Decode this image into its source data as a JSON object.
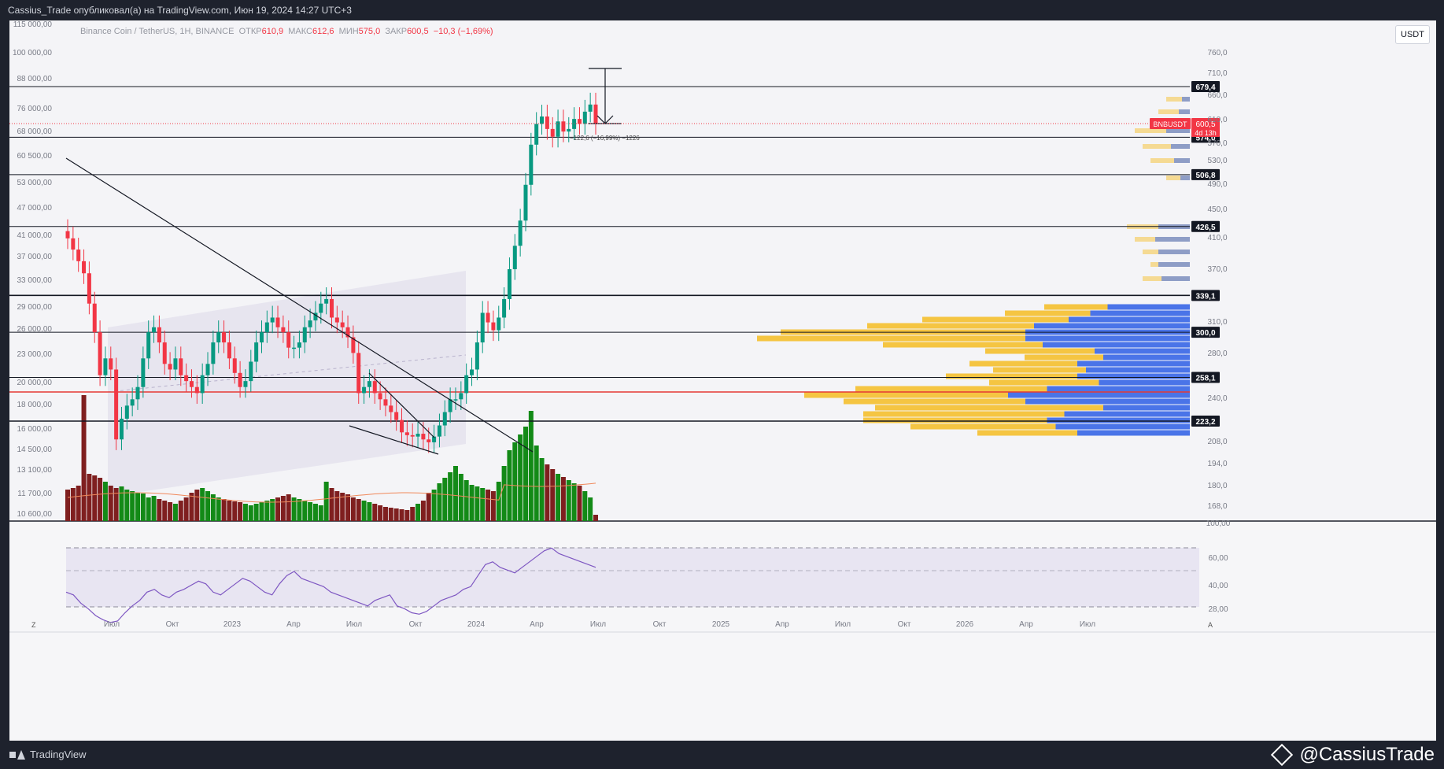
{
  "header": {
    "publish_line": "Cassius_Trade опубликовал(а) на TradingView.com, Июн 19, 2024 14:27 UTC+3"
  },
  "legend": {
    "symbol": "Binance Coin / TetherUS, 1H, BINANCE",
    "open_label": "ОТКР",
    "open_value": "610,9",
    "high_label": "МАКС",
    "high_value": "612,6",
    "low_label": "МИН",
    "low_value": "575,0",
    "close_label": "ЗАКР",
    "close_value": "600,5",
    "change": "−10,3 (−1,69%)"
  },
  "currency_button": "USDT",
  "left_axis": [
    "115 000,00",
    "100 000,00",
    "88 000,00",
    "76 000,00",
    "68 000,00",
    "60 500,00",
    "53 000,00",
    "47 000,00",
    "41 000,00",
    "37 000,00",
    "33 000,00",
    "29 000,00",
    "26 000,00",
    "23 000,00",
    "20 000,00",
    "18 000,00",
    "16 000,00",
    "14 500,00",
    "13 100,00",
    "11 700,00",
    "10 600,00"
  ],
  "right_axis": [
    "760,0",
    "710,0",
    "660,0",
    "610,0",
    "570,0",
    "530,0",
    "490,0",
    "450,0",
    "410,0",
    "370,0",
    "310,0",
    "280,0",
    "240,0",
    "208,0",
    "194,0",
    "180,0",
    "168,0"
  ],
  "levels": [
    "679,4",
    "574,0",
    "506,8",
    "426,5",
    "339,1",
    "300,0",
    "258,1",
    "223,2"
  ],
  "price_tag": {
    "symbol": "BNBUSDT",
    "price": "600,5",
    "countdown": "4d 13h"
  },
  "measure_label": "−122,6 (−16,99%) −1226",
  "rsi_axis": [
    "100,00",
    "60,00",
    "40,00",
    "28,00"
  ],
  "time_axis": [
    "Июл",
    "Окт",
    "2023",
    "Апр",
    "Июл",
    "Окт",
    "2024",
    "Апр",
    "Июл",
    "Окт",
    "2025",
    "Апр",
    "Июл",
    "Окт",
    "2026",
    "Апр",
    "Июл"
  ],
  "footer": {
    "logo": "TradingView",
    "watermark": "@CassiusTrade",
    "z_label": "Z",
    "a_label": "A"
  },
  "colors": {
    "up": "#089981",
    "down": "#f23645",
    "vol_up": "#138a17",
    "vol_down": "#7f1f1f",
    "rsi": "#7e57c2",
    "vp_buy": "#f5c542",
    "vp_sell": "#4a74e8"
  }
}
